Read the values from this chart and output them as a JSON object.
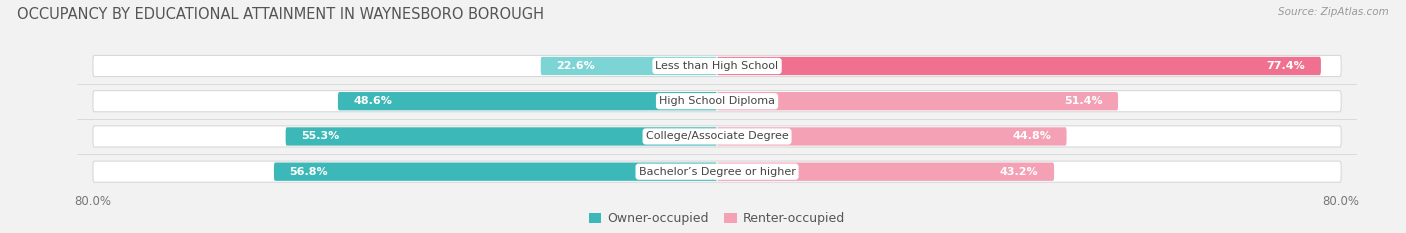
{
  "title": "OCCUPANCY BY EDUCATIONAL ATTAINMENT IN WAYNESBORO BOROUGH",
  "source": "Source: ZipAtlas.com",
  "categories": [
    "Less than High School",
    "High School Diploma",
    "College/Associate Degree",
    "Bachelor’s Degree or higher"
  ],
  "owner_values": [
    22.6,
    48.6,
    55.3,
    56.8
  ],
  "renter_values": [
    77.4,
    51.4,
    44.8,
    43.2
  ],
  "owner_colors": [
    "#7dd4d4",
    "#3db8b8",
    "#3db8b8",
    "#3db8b8"
  ],
  "renter_colors": [
    "#f07090",
    "#f4a0b5",
    "#f4a0b5",
    "#f4a0b5"
  ],
  "background_color": "#f2f2f2",
  "bar_bg_color": "#ffffff",
  "title_fontsize": 10.5,
  "label_fontsize": 8.0,
  "tick_fontsize": 8.5,
  "legend_fontsize": 9.0
}
